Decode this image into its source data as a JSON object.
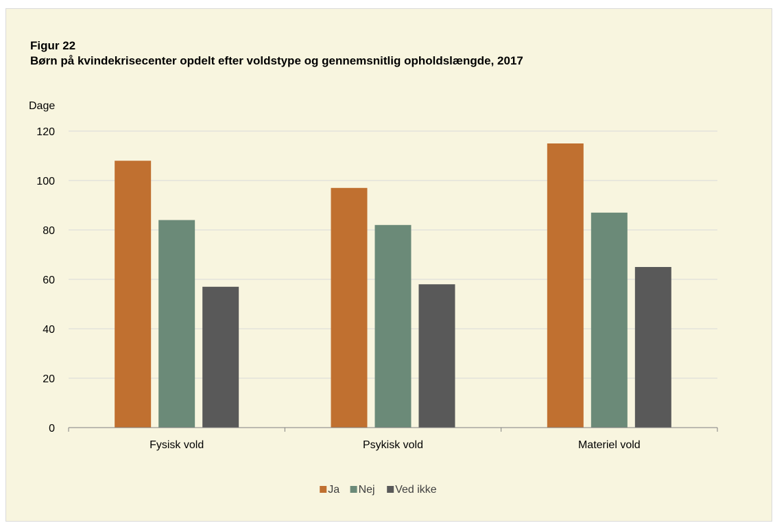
{
  "figure": {
    "label": "Figur 22",
    "title": "Børn på kvindekrisecenter opdelt efter voldstype og gennemsnitlig opholdslængde, 2017"
  },
  "chart_data": {
    "type": "bar",
    "title": "Børn på kvindekrisecenter opdelt efter voldstype og gennemsnitlig opholdslængde, 2017",
    "ylabel": "Dage",
    "xlabel": "",
    "categories": [
      "Fysisk vold",
      "Psykisk vold",
      "Materiel vold"
    ],
    "series": [
      {
        "name": "Ja",
        "values": [
          108,
          97,
          115
        ],
        "color": "#c07030"
      },
      {
        "name": "Nej",
        "values": [
          84,
          82,
          87
        ],
        "color": "#6b8a78"
      },
      {
        "name": "Ved ikke",
        "values": [
          57,
          58,
          65
        ],
        "color": "#595959"
      }
    ],
    "ylim": [
      0,
      120
    ],
    "yticks": [
      0,
      20,
      40,
      60,
      80,
      100,
      120
    ],
    "grid": true,
    "legend_position": "bottom"
  }
}
